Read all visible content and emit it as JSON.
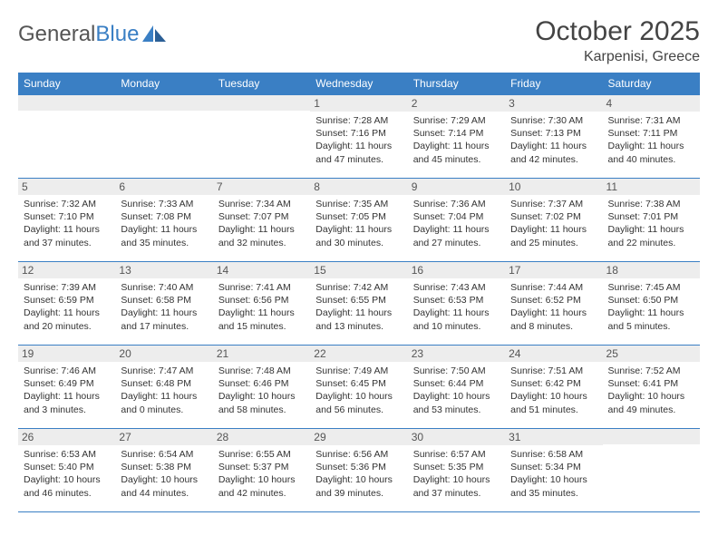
{
  "logo": {
    "text1": "General",
    "text2": "Blue"
  },
  "title": "October 2025",
  "location": "Karpenisi, Greece",
  "header_bg": "#3a7fc4",
  "day_header_color": "#ffffff",
  "daynum_bg": "#ededed",
  "border_color": "#3a7fc4",
  "dayNames": [
    "Sunday",
    "Monday",
    "Tuesday",
    "Wednesday",
    "Thursday",
    "Friday",
    "Saturday"
  ],
  "weeks": [
    [
      null,
      null,
      null,
      {
        "n": "1",
        "sr": "7:28 AM",
        "ss": "7:16 PM",
        "dl": "11 hours and 47 minutes."
      },
      {
        "n": "2",
        "sr": "7:29 AM",
        "ss": "7:14 PM",
        "dl": "11 hours and 45 minutes."
      },
      {
        "n": "3",
        "sr": "7:30 AM",
        "ss": "7:13 PM",
        "dl": "11 hours and 42 minutes."
      },
      {
        "n": "4",
        "sr": "7:31 AM",
        "ss": "7:11 PM",
        "dl": "11 hours and 40 minutes."
      }
    ],
    [
      {
        "n": "5",
        "sr": "7:32 AM",
        "ss": "7:10 PM",
        "dl": "11 hours and 37 minutes."
      },
      {
        "n": "6",
        "sr": "7:33 AM",
        "ss": "7:08 PM",
        "dl": "11 hours and 35 minutes."
      },
      {
        "n": "7",
        "sr": "7:34 AM",
        "ss": "7:07 PM",
        "dl": "11 hours and 32 minutes."
      },
      {
        "n": "8",
        "sr": "7:35 AM",
        "ss": "7:05 PM",
        "dl": "11 hours and 30 minutes."
      },
      {
        "n": "9",
        "sr": "7:36 AM",
        "ss": "7:04 PM",
        "dl": "11 hours and 27 minutes."
      },
      {
        "n": "10",
        "sr": "7:37 AM",
        "ss": "7:02 PM",
        "dl": "11 hours and 25 minutes."
      },
      {
        "n": "11",
        "sr": "7:38 AM",
        "ss": "7:01 PM",
        "dl": "11 hours and 22 minutes."
      }
    ],
    [
      {
        "n": "12",
        "sr": "7:39 AM",
        "ss": "6:59 PM",
        "dl": "11 hours and 20 minutes."
      },
      {
        "n": "13",
        "sr": "7:40 AM",
        "ss": "6:58 PM",
        "dl": "11 hours and 17 minutes."
      },
      {
        "n": "14",
        "sr": "7:41 AM",
        "ss": "6:56 PM",
        "dl": "11 hours and 15 minutes."
      },
      {
        "n": "15",
        "sr": "7:42 AM",
        "ss": "6:55 PM",
        "dl": "11 hours and 13 minutes."
      },
      {
        "n": "16",
        "sr": "7:43 AM",
        "ss": "6:53 PM",
        "dl": "11 hours and 10 minutes."
      },
      {
        "n": "17",
        "sr": "7:44 AM",
        "ss": "6:52 PM",
        "dl": "11 hours and 8 minutes."
      },
      {
        "n": "18",
        "sr": "7:45 AM",
        "ss": "6:50 PM",
        "dl": "11 hours and 5 minutes."
      }
    ],
    [
      {
        "n": "19",
        "sr": "7:46 AM",
        "ss": "6:49 PM",
        "dl": "11 hours and 3 minutes."
      },
      {
        "n": "20",
        "sr": "7:47 AM",
        "ss": "6:48 PM",
        "dl": "11 hours and 0 minutes."
      },
      {
        "n": "21",
        "sr": "7:48 AM",
        "ss": "6:46 PM",
        "dl": "10 hours and 58 minutes."
      },
      {
        "n": "22",
        "sr": "7:49 AM",
        "ss": "6:45 PM",
        "dl": "10 hours and 56 minutes."
      },
      {
        "n": "23",
        "sr": "7:50 AM",
        "ss": "6:44 PM",
        "dl": "10 hours and 53 minutes."
      },
      {
        "n": "24",
        "sr": "7:51 AM",
        "ss": "6:42 PM",
        "dl": "10 hours and 51 minutes."
      },
      {
        "n": "25",
        "sr": "7:52 AM",
        "ss": "6:41 PM",
        "dl": "10 hours and 49 minutes."
      }
    ],
    [
      {
        "n": "26",
        "sr": "6:53 AM",
        "ss": "5:40 PM",
        "dl": "10 hours and 46 minutes."
      },
      {
        "n": "27",
        "sr": "6:54 AM",
        "ss": "5:38 PM",
        "dl": "10 hours and 44 minutes."
      },
      {
        "n": "28",
        "sr": "6:55 AM",
        "ss": "5:37 PM",
        "dl": "10 hours and 42 minutes."
      },
      {
        "n": "29",
        "sr": "6:56 AM",
        "ss": "5:36 PM",
        "dl": "10 hours and 39 minutes."
      },
      {
        "n": "30",
        "sr": "6:57 AM",
        "ss": "5:35 PM",
        "dl": "10 hours and 37 minutes."
      },
      {
        "n": "31",
        "sr": "6:58 AM",
        "ss": "5:34 PM",
        "dl": "10 hours and 35 minutes."
      },
      null
    ]
  ],
  "labels": {
    "sunrise": "Sunrise:",
    "sunset": "Sunset:",
    "daylight": "Daylight:"
  }
}
